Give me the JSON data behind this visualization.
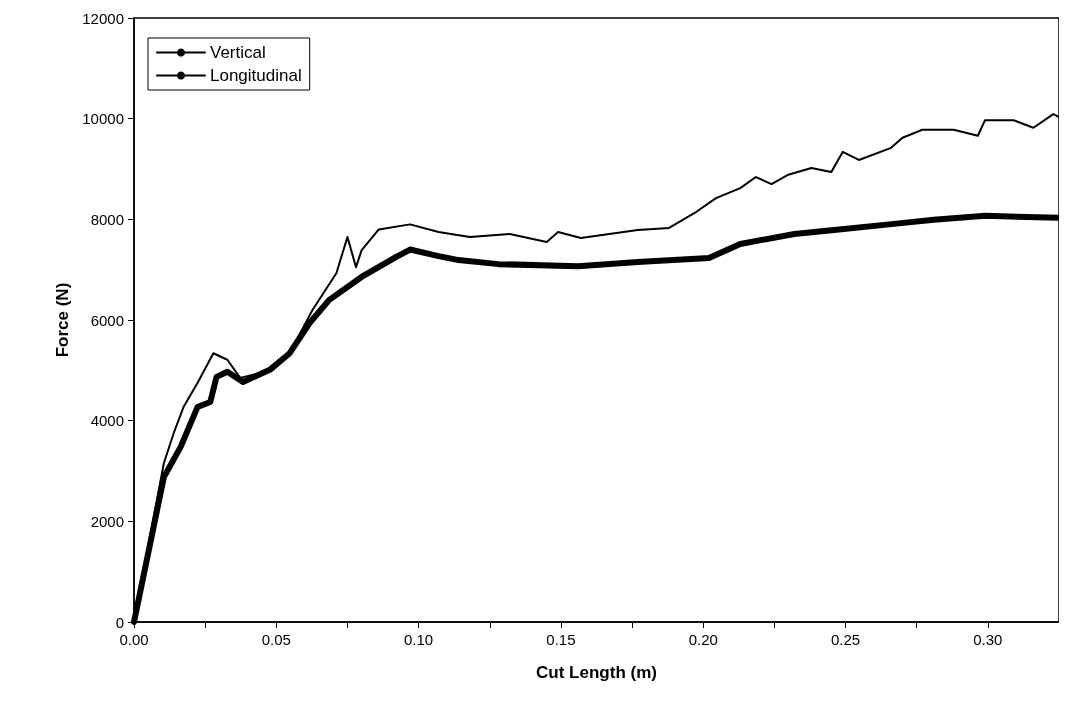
{
  "chart_data": {
    "type": "line",
    "xlabel": "Cut Length (m)",
    "ylabel": "Force (N)",
    "xlim": [
      0,
      0.325
    ],
    "ylim": [
      0,
      12000
    ],
    "xticks": [
      {
        "value": 0,
        "label": "0.00"
      },
      {
        "value": 0.025,
        "label": null
      },
      {
        "value": 0.05,
        "label": "0.05"
      },
      {
        "value": 0.075,
        "label": null
      },
      {
        "value": 0.1,
        "label": "0.10"
      },
      {
        "value": 0.125,
        "label": null
      },
      {
        "value": 0.15,
        "label": "0.15"
      },
      {
        "value": 0.175,
        "label": null
      },
      {
        "value": 0.2,
        "label": "0.20"
      },
      {
        "value": 0.225,
        "label": null
      },
      {
        "value": 0.25,
        "label": "0.25"
      },
      {
        "value": 0.275,
        "label": null
      },
      {
        "value": 0.3,
        "label": "0.30"
      }
    ],
    "yticks": [
      0,
      2000,
      4000,
      6000,
      8000,
      10000,
      12000
    ],
    "grid": false,
    "legend": "top left",
    "marker": "none",
    "line_style": "solid",
    "series": [
      {
        "name": "Vertical",
        "color": "#000000",
        "x": [
          0,
          0.0105,
          0.0164,
          0.0223,
          0.0268,
          0.029,
          0.0328,
          0.0383,
          0.0477,
          0.0547,
          0.0617,
          0.0686,
          0.0801,
          0.092,
          0.097,
          0.107,
          0.114,
          0.128,
          0.156,
          0.177,
          0.202,
          0.213,
          0.232,
          0.246,
          0.267,
          0.281,
          0.299,
          0.325
        ],
        "values": [
          0,
          2880,
          3480,
          4270,
          4370,
          4870,
          4970,
          4770,
          5010,
          5340,
          5940,
          6400,
          6860,
          7250,
          7400,
          7270,
          7190,
          7110,
          7070,
          7150,
          7230,
          7510,
          7710,
          7790,
          7910,
          7990,
          8070,
          8030
        ]
      },
      {
        "name": "Longitudinal",
        "color": "#000000",
        "x": [
          0,
          0.0105,
          0.014,
          0.0174,
          0.0223,
          0.0279,
          0.0328,
          0.0373,
          0.0488,
          0.0547,
          0.0627,
          0.0711,
          0.075,
          0.078,
          0.08,
          0.086,
          0.097,
          0.107,
          0.118,
          0.132,
          0.145,
          0.149,
          0.157,
          0.177,
          0.188,
          0.1976,
          0.2045,
          0.213,
          0.2185,
          0.224,
          0.2296,
          0.238,
          0.245,
          0.249,
          0.2547,
          0.266,
          0.27,
          0.277,
          0.288,
          0.2965,
          0.299,
          0.309,
          0.316,
          0.323,
          0.325
        ],
        "values": [
          0,
          3160,
          3760,
          4270,
          4750,
          5340,
          5210,
          4850,
          5010,
          5340,
          6200,
          6930,
          7650,
          7050,
          7390,
          7800,
          7900,
          7750,
          7650,
          7710,
          7550,
          7750,
          7630,
          7790,
          7830,
          8150,
          8420,
          8620,
          8840,
          8700,
          8880,
          9020,
          8940,
          9340,
          9180,
          9420,
          9620,
          9780,
          9780,
          9660,
          9970,
          9970,
          9820,
          10090,
          10030
        ]
      }
    ]
  }
}
